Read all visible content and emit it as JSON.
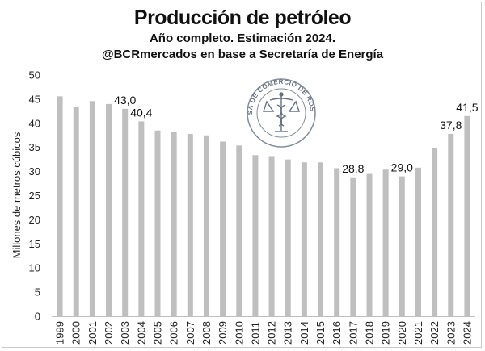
{
  "header": {
    "title": "Producción de petróleo",
    "subtitle": "Año completo. Estimación 2024.",
    "source": "@BCRmercados en base a Secretaría de Energía"
  },
  "logo": {
    "text": "BOLSA DE COMERCIO DE ROSARIO",
    "icon": "caduceus-scales-icon",
    "color": "#4a5a6e"
  },
  "chart_data": {
    "type": "bar",
    "title": "Producción de petróleo",
    "subtitle": "Año completo. Estimación 2024.",
    "xlabel": "",
    "ylabel": "Millones de metros cúbicos",
    "ylim": [
      0,
      50
    ],
    "yticks": [
      0,
      5,
      10,
      15,
      20,
      25,
      30,
      35,
      40,
      45,
      50
    ],
    "grid": false,
    "bar_color": "#bfbfbf",
    "categories": [
      "1999",
      "2000",
      "2001",
      "2002",
      "2003",
      "2004",
      "2005",
      "2006",
      "2007",
      "2008",
      "2009",
      "2010",
      "2011",
      "2012",
      "2013",
      "2014",
      "2015",
      "2016",
      "2017",
      "2018",
      "2019",
      "2020",
      "2021",
      "2022",
      "2023",
      "2024"
    ],
    "values": [
      45.6,
      43.3,
      44.6,
      44.0,
      43.0,
      40.4,
      38.5,
      38.3,
      37.8,
      37.5,
      36.2,
      35.4,
      33.4,
      33.2,
      32.5,
      31.9,
      31.9,
      30.7,
      28.8,
      29.5,
      30.4,
      29.0,
      30.8,
      34.9,
      37.8,
      41.5
    ],
    "data_labels": [
      {
        "index": 4,
        "text": "43,0"
      },
      {
        "index": 5,
        "text": "40,4"
      },
      {
        "index": 18,
        "text": "28,8"
      },
      {
        "index": 21,
        "text": "29,0"
      },
      {
        "index": 24,
        "text": "37,8"
      },
      {
        "index": 25,
        "text": "41,5"
      }
    ]
  }
}
